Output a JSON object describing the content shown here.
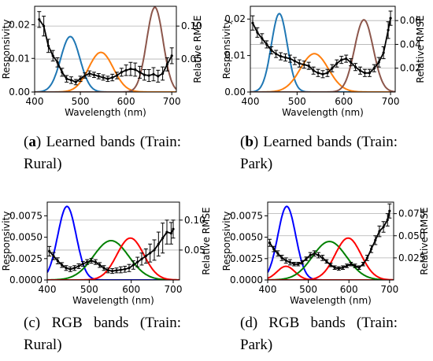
{
  "captions": [
    {
      "label": "(a)",
      "letter": "a",
      "text": "Learned bands (Train: Rural)"
    },
    {
      "label": "(b)",
      "letter": "b",
      "text": "Learned bands (Train: Park)"
    },
    {
      "label": "(c)",
      "letter": "c",
      "text": "RGB bands (Train: Rural)"
    },
    {
      "label": "(d)",
      "letter": "d",
      "text": "RGB bands (Train: Park)"
    }
  ],
  "chart_data": [
    {
      "type": "line",
      "xlabel": "Wavelength (nm)",
      "ylabel": "Responsivity",
      "y2label": "Relative RMSE",
      "xlim": [
        400,
        710
      ],
      "xticks": [
        400,
        500,
        600,
        700
      ],
      "ylim": [
        0,
        0.0255
      ],
      "yticks": [
        0.0,
        0.01,
        0.02
      ],
      "ytick_labels": [
        "0.00",
        "0.01",
        "0.02"
      ],
      "y2lim": [
        0,
        0.13
      ],
      "y2ticks": [
        0.05,
        0.1
      ],
      "y2tick_labels": [
        "0.05",
        "0.10"
      ],
      "grid": "y2",
      "bands": [
        {
          "color": "#1f77b4",
          "center": 478,
          "width": 21,
          "peak": 0.0165
        },
        {
          "color": "#ff7f0e",
          "center": 545,
          "width": 27,
          "peak": 0.0118
        },
        {
          "color": "#8c564b",
          "center": 663,
          "width": 18,
          "peak": 0.0252
        }
      ],
      "rmse": {
        "color": "#000000",
        "x": [
          410,
          420,
          430,
          440,
          450,
          460,
          470,
          480,
          490,
          500,
          510,
          520,
          530,
          540,
          550,
          560,
          570,
          580,
          590,
          600,
          610,
          620,
          630,
          640,
          650,
          660,
          670,
          680,
          690,
          700
        ],
        "y": [
          0.11,
          0.1,
          0.07,
          0.055,
          0.045,
          0.03,
          0.02,
          0.018,
          0.015,
          0.02,
          0.025,
          0.028,
          0.026,
          0.024,
          0.022,
          0.02,
          0.022,
          0.025,
          0.03,
          0.033,
          0.035,
          0.034,
          0.03,
          0.026,
          0.025,
          0.027,
          0.024,
          0.028,
          0.042,
          0.055
        ],
        "err": [
          0.012,
          0.015,
          0.01,
          0.008,
          0.007,
          0.006,
          0.005,
          0.005,
          0.004,
          0.004,
          0.004,
          0.004,
          0.004,
          0.004,
          0.004,
          0.004,
          0.005,
          0.005,
          0.006,
          0.008,
          0.01,
          0.01,
          0.009,
          0.008,
          0.009,
          0.01,
          0.009,
          0.01,
          0.01,
          0.012
        ]
      }
    },
    {
      "type": "line",
      "xlabel": "Wavelength (nm)",
      "ylabel": "Responsivity",
      "y2label": "Relative RMSE",
      "xlim": [
        400,
        710
      ],
      "xticks": [
        400,
        500,
        600,
        700
      ],
      "ylim": [
        0,
        0.0235
      ],
      "yticks": [
        0.0,
        0.01,
        0.02
      ],
      "ytick_labels": [
        "0.00",
        "0.01",
        "0.02"
      ],
      "y2lim": [
        0,
        0.072
      ],
      "y2ticks": [
        0.02,
        0.04,
        0.06
      ],
      "y2tick_labels": [
        "0.02",
        "0.04",
        "0.06"
      ],
      "grid": "y2",
      "bands": [
        {
          "color": "#1f77b4",
          "center": 462,
          "width": 17,
          "peak": 0.0215
        },
        {
          "color": "#ff7f0e",
          "center": 537,
          "width": 30,
          "peak": 0.0105
        },
        {
          "color": "#8c564b",
          "center": 643,
          "width": 20,
          "peak": 0.0198
        }
      ],
      "rmse": {
        "color": "#000000",
        "x": [
          405,
          415,
          425,
          435,
          445,
          455,
          465,
          475,
          485,
          495,
          505,
          515,
          525,
          535,
          545,
          555,
          565,
          575,
          585,
          595,
          605,
          615,
          625,
          635,
          645,
          655,
          665,
          675,
          685,
          695,
          700
        ],
        "y": [
          0.058,
          0.05,
          0.045,
          0.04,
          0.035,
          0.032,
          0.03,
          0.029,
          0.028,
          0.026,
          0.024,
          0.023,
          0.022,
          0.018,
          0.016,
          0.015,
          0.016,
          0.02,
          0.024,
          0.027,
          0.028,
          0.025,
          0.021,
          0.018,
          0.016,
          0.016,
          0.02,
          0.025,
          0.033,
          0.052,
          0.062
        ],
        "err": [
          0.006,
          0.004,
          0.004,
          0.003,
          0.003,
          0.003,
          0.003,
          0.003,
          0.003,
          0.003,
          0.003,
          0.003,
          0.003,
          0.003,
          0.003,
          0.003,
          0.003,
          0.003,
          0.003,
          0.003,
          0.003,
          0.003,
          0.003,
          0.003,
          0.003,
          0.003,
          0.003,
          0.004,
          0.005,
          0.007,
          0.006
        ]
      }
    },
    {
      "type": "line",
      "xlabel": "Wavelength (nm)",
      "ylabel": "Responsivity",
      "y2label": "Relative RMSE",
      "xlim": [
        400,
        715
      ],
      "xticks": [
        400,
        500,
        600,
        700
      ],
      "ylim": [
        0,
        0.0091
      ],
      "yticks": [
        0.0,
        0.0025,
        0.005,
        0.0075
      ],
      "ytick_labels": [
        "0.0000",
        "0.0025",
        "0.0050",
        "0.0075"
      ],
      "y2lim": [
        0,
        0.13
      ],
      "y2ticks": [
        0.05,
        0.1
      ],
      "y2tick_labels": [
        "0.05",
        "0.10"
      ],
      "grid": "y2",
      "bands": [
        {
          "color": "#0000ff",
          "center": 447,
          "width": 22,
          "peak": 0.0086
        },
        {
          "color": "#008000",
          "center": 552,
          "width": 42,
          "peak": 0.0046
        },
        {
          "color": "#ff0000",
          "center": 598,
          "width": 32,
          "peak": 0.0049
        }
      ],
      "rmse": {
        "color": "#000000",
        "x": [
          405,
          415,
          425,
          435,
          445,
          455,
          465,
          475,
          485,
          495,
          505,
          515,
          525,
          535,
          545,
          555,
          565,
          575,
          585,
          595,
          605,
          615,
          625,
          635,
          645,
          655,
          665,
          675,
          685,
          695,
          700
        ],
        "y": [
          0.048,
          0.04,
          0.032,
          0.025,
          0.02,
          0.018,
          0.02,
          0.023,
          0.027,
          0.03,
          0.032,
          0.03,
          0.025,
          0.02,
          0.016,
          0.015,
          0.016,
          0.017,
          0.018,
          0.02,
          0.025,
          0.03,
          0.035,
          0.04,
          0.045,
          0.05,
          0.06,
          0.07,
          0.08,
          0.078,
          0.085
        ],
        "err": [
          0.008,
          0.006,
          0.005,
          0.004,
          0.004,
          0.004,
          0.004,
          0.004,
          0.004,
          0.004,
          0.004,
          0.004,
          0.004,
          0.004,
          0.004,
          0.004,
          0.004,
          0.005,
          0.005,
          0.006,
          0.007,
          0.008,
          0.01,
          0.012,
          0.015,
          0.017,
          0.02,
          0.025,
          0.02,
          0.018,
          0.015
        ]
      }
    },
    {
      "type": "line",
      "xlabel": "Wavelength (nm)",
      "ylabel": "Responsivity",
      "y2label": "Relative RMSE",
      "xlim": [
        400,
        710
      ],
      "xticks": [
        400,
        500,
        600,
        700
      ],
      "ylim": [
        0,
        0.0091
      ],
      "yticks": [
        0.0,
        0.0025,
        0.005,
        0.0075
      ],
      "ytick_labels": [
        "0.0000",
        "0.0025",
        "0.0050",
        "0.0075"
      ],
      "y2lim": [
        0,
        0.088
      ],
      "y2ticks": [
        0.025,
        0.05,
        0.075
      ],
      "y2tick_labels": [
        "0.025",
        "0.050",
        "0.075"
      ],
      "grid": "y2",
      "bands": [
        {
          "color": "#0000ff",
          "center": 447,
          "width": 22,
          "peak": 0.0086
        },
        {
          "color": "#ff0000",
          "center": 445,
          "width": 22,
          "peak": 0.0016
        },
        {
          "color": "#008000",
          "center": 552,
          "width": 42,
          "peak": 0.0045
        },
        {
          "color": "#ff0000",
          "center": 598,
          "width": 32,
          "peak": 0.0049
        }
      ],
      "rmse": {
        "color": "#000000",
        "x": [
          405,
          415,
          425,
          435,
          445,
          455,
          465,
          475,
          485,
          495,
          505,
          515,
          525,
          535,
          545,
          555,
          565,
          575,
          585,
          595,
          605,
          615,
          625,
          635,
          645,
          655,
          665,
          675,
          685,
          695,
          700
        ],
        "y": [
          0.042,
          0.035,
          0.03,
          0.025,
          0.022,
          0.02,
          0.018,
          0.018,
          0.02,
          0.024,
          0.028,
          0.03,
          0.028,
          0.025,
          0.021,
          0.017,
          0.014,
          0.013,
          0.014,
          0.016,
          0.018,
          0.016,
          0.014,
          0.018,
          0.025,
          0.035,
          0.045,
          0.055,
          0.06,
          0.068,
          0.078
        ],
        "err": [
          0.004,
          0.003,
          0.003,
          0.003,
          0.003,
          0.003,
          0.002,
          0.002,
          0.002,
          0.002,
          0.003,
          0.003,
          0.003,
          0.003,
          0.002,
          0.002,
          0.002,
          0.002,
          0.002,
          0.002,
          0.002,
          0.002,
          0.002,
          0.002,
          0.003,
          0.004,
          0.005,
          0.006,
          0.006,
          0.007,
          0.008
        ]
      }
    }
  ]
}
